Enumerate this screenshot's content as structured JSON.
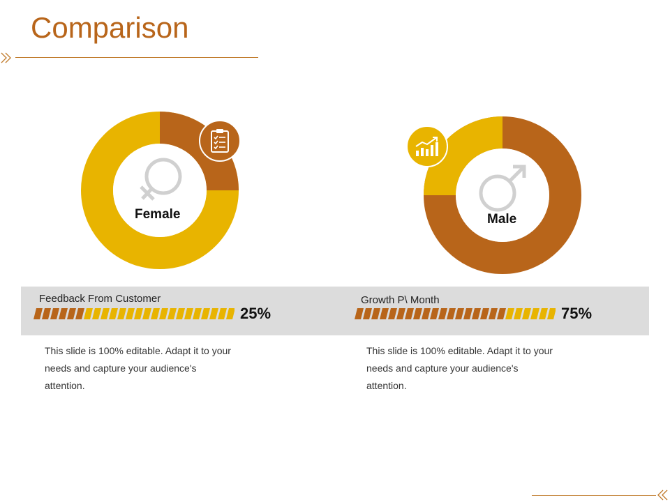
{
  "title": "Comparison",
  "colors": {
    "accent_dark": "#b8651a",
    "accent_light": "#e8b400",
    "band": "#dcdcdc"
  },
  "panels": [
    {
      "label": "Female",
      "gender_icon": "female-symbol-icon",
      "badge_icon": "clipboard-checklist-icon",
      "metric_label": "Feedback From Customer",
      "percent_text": "25%",
      "percent": 25,
      "description": "This slide is 100% editable. Adapt it to your needs and capture your audience's attention."
    },
    {
      "label": "Male",
      "gender_icon": "male-symbol-icon",
      "badge_icon": "growth-chart-icon",
      "metric_label": "Growth P\\ Month",
      "percent_text": "75%",
      "percent": 75,
      "description": "This slide is 100% editable. Adapt it to your needs and capture your audience's attention."
    }
  ]
}
